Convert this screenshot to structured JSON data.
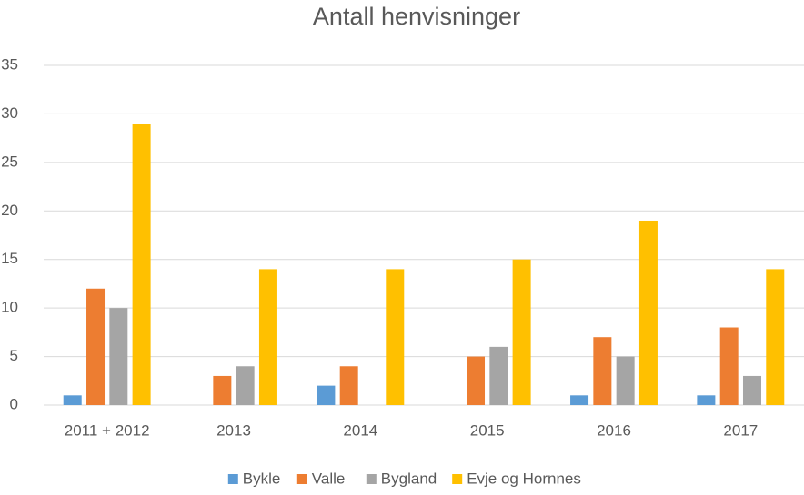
{
  "chart_data": {
    "type": "bar",
    "title": "Antall henvisninger",
    "categories": [
      "2011 + 2012",
      "2013",
      "2014",
      "2015",
      "2016",
      "2017"
    ],
    "series": [
      {
        "name": "Bykle",
        "color": "#5b9bd5",
        "values": [
          1,
          0,
          2,
          0,
          1,
          1
        ]
      },
      {
        "name": "Valle",
        "color": "#ed7d31",
        "values": [
          12,
          3,
          4,
          5,
          7,
          8
        ]
      },
      {
        "name": "Bygland",
        "color": "#a5a5a5",
        "values": [
          10,
          4,
          0,
          6,
          5,
          3
        ]
      },
      {
        "name": "Evje og Hornnes",
        "color": "#ffc000",
        "values": [
          29,
          14,
          14,
          15,
          19,
          14
        ]
      }
    ],
    "ylim": [
      0,
      35
    ],
    "yticks": [
      0,
      5,
      10,
      15,
      20,
      25,
      30,
      35
    ],
    "grid": true,
    "legend": "bottom"
  }
}
